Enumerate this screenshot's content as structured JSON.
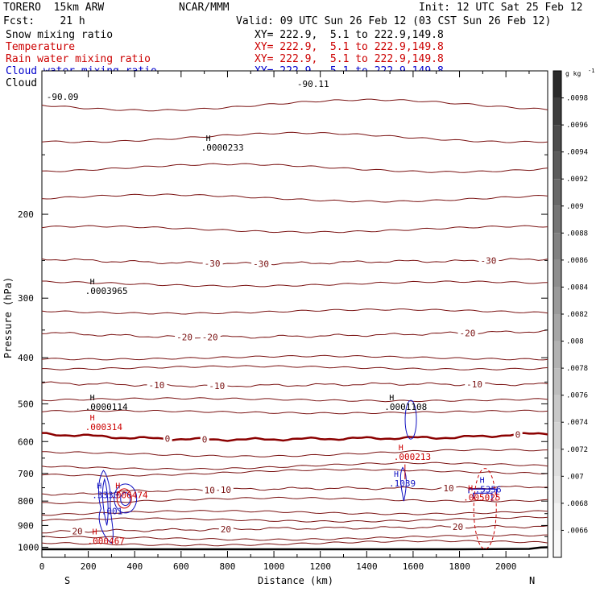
{
  "header": {
    "model": "TORERO  15km ARW",
    "org": "NCAR/MMM",
    "init": "Init: 12 UTC Sat 25 Feb 12",
    "fcst": "Fcst:    21 h",
    "valid": "Valid: 09 UTC Sun 26 Feb 12 (03 CST Sun 26 Feb 12)"
  },
  "fields": [
    {
      "name": "Snow mixing ratio",
      "xy": "XY= 222.9,  5.1 to 222.9,149.8",
      "color": "#000000"
    },
    {
      "name": "Temperature",
      "xy": "XY= 222.9,  5.1 to 222.9,149.8",
      "color": "#cc0000"
    },
    {
      "name": "Rain water mixing ratio",
      "xy": "XY= 222.9,  5.1 to 222.9,149.8",
      "color": "#cc0000"
    },
    {
      "name": "Cloud water mixing ratio",
      "xy": "XY= 222.9,  5.1 to 222.9,149.8",
      "color": "#0000cc"
    },
    {
      "name": "Cloud ice mixing ratio",
      "xy": "XY= 222.9,  5.1 to 222.9,149.8",
      "color": "#000000"
    }
  ],
  "chart_data": {
    "type": "contour cross-section",
    "xlabel": "Distance (km)",
    "ylabel": "Pressure (hPa)",
    "xlim": [
      0,
      2180
    ],
    "ylim": [
      1050,
      100
    ],
    "x_ticks": [
      0,
      200,
      400,
      600,
      800,
      1000,
      1200,
      1400,
      1600,
      1800,
      2000
    ],
    "y_ticks": [
      200,
      300,
      400,
      500,
      600,
      700,
      800,
      900,
      1000
    ],
    "x_end_labels": {
      "left": "S",
      "right": "N"
    },
    "isotherms": [
      {
        "temp": -30,
        "labels": [
          {
            "x": 700,
            "text": "-30"
          },
          {
            "x": 910,
            "text": "-30"
          },
          {
            "x": 1890,
            "text": "-30"
          }
        ],
        "points": [
          [
            0,
            248
          ],
          [
            300,
            251
          ],
          [
            600,
            253
          ],
          [
            900,
            254
          ],
          [
            1200,
            253
          ],
          [
            1500,
            251
          ],
          [
            1800,
            251
          ],
          [
            2180,
            248
          ]
        ]
      },
      {
        "temp": -20,
        "labels": [
          {
            "x": 580,
            "text": "-20"
          },
          {
            "x": 690,
            "text": "-20"
          },
          {
            "x": 1800,
            "text": "-20"
          }
        ],
        "points": [
          [
            0,
            354
          ],
          [
            300,
            359
          ],
          [
            600,
            362
          ],
          [
            900,
            362
          ],
          [
            1200,
            360
          ],
          [
            1500,
            358
          ],
          [
            1800,
            355
          ],
          [
            2180,
            352
          ]
        ]
      },
      {
        "temp": -10,
        "labels": [
          {
            "x": 460,
            "text": "-10"
          },
          {
            "x": 720,
            "text": "-10"
          },
          {
            "x": 1830,
            "text": "-10"
          }
        ],
        "points": [
          [
            0,
            452
          ],
          [
            300,
            455
          ],
          [
            600,
            458
          ],
          [
            900,
            458
          ],
          [
            1200,
            456
          ],
          [
            1500,
            454
          ],
          [
            1800,
            455
          ],
          [
            2180,
            455
          ]
        ]
      },
      {
        "temp": 0,
        "labels": [
          {
            "x": 530,
            "text": "0"
          },
          {
            "x": 690,
            "text": "0"
          },
          {
            "x": 2040,
            "text": "0"
          }
        ],
        "points": [
          [
            0,
            578
          ],
          [
            150,
            582
          ],
          [
            400,
            590
          ],
          [
            700,
            594
          ],
          [
            900,
            594
          ],
          [
            1200,
            592
          ],
          [
            1500,
            590
          ],
          [
            1800,
            588
          ],
          [
            2180,
            576
          ]
        ]
      },
      {
        "temp": 10,
        "labels": [
          {
            "x": 700,
            "text": "10"
          },
          {
            "x": 770,
            "text": "10"
          },
          {
            "x": 1730,
            "text": "10"
          }
        ],
        "points": [
          [
            0,
            772
          ],
          [
            150,
            775
          ],
          [
            400,
            762
          ],
          [
            700,
            758
          ],
          [
            900,
            755
          ],
          [
            1200,
            752
          ],
          [
            1500,
            752
          ],
          [
            1700,
            752
          ],
          [
            1900,
            750
          ],
          [
            2180,
            745
          ]
        ]
      },
      {
        "temp": 20,
        "labels": [
          {
            "x": 130,
            "text": "20"
          },
          {
            "x": 770,
            "text": "20"
          },
          {
            "x": 1770,
            "text": "20"
          }
        ],
        "points": [
          [
            0,
            932
          ],
          [
            150,
            925
          ],
          [
            400,
            922
          ],
          [
            700,
            918
          ],
          [
            900,
            914
          ],
          [
            1200,
            912
          ],
          [
            1500,
            910
          ],
          [
            1800,
            906
          ],
          [
            2180,
            905
          ]
        ]
      }
    ],
    "surface_pressure": [
      [
        0,
        1010
      ],
      [
        1800,
        1010
      ],
      [
        2100,
        1008
      ],
      [
        2150,
        1001
      ],
      [
        2180,
        1000
      ]
    ],
    "extrema_labels": [
      {
        "field": "Snow mixing ratio",
        "x": 200,
        "p": 294,
        "h": "H",
        "value": ".0003965"
      },
      {
        "field": "Cloud ice mixing ratio",
        "x": 700,
        "p": 147,
        "h": "H",
        "value": ".0000233"
      },
      {
        "field": "Cloud ice mixing ratio",
        "x": 200,
        "p": 515,
        "h": "H",
        "value": ".0000114"
      },
      {
        "field": "Snow mixing ratio",
        "x": 1490,
        "p": 515,
        "h": "H",
        "value": ".0001108"
      },
      {
        "field": "Rain water mixing ratio",
        "x": 200,
        "p": 568,
        "h": "H",
        "value": ".000314"
      },
      {
        "field": "Rain water mixing ratio",
        "x": 1530,
        "p": 655,
        "h": "H",
        "value": ".000213"
      },
      {
        "field": "Cloud water mixing ratio",
        "x": 1510,
        "p": 745,
        "h": "H",
        "value": ".1039"
      },
      {
        "field": "Cloud water mixing ratio",
        "x": 230,
        "p": 788,
        "h": "H",
        "value": ".3330"
      },
      {
        "field": "Rain water mixing ratio",
        "x": 310,
        "p": 788,
        "h": "H",
        "value": ".006474"
      },
      {
        "field": "Cloud water mixing ratio",
        "x": 1880,
        "p": 768,
        "h": "H",
        "value": ".5356"
      },
      {
        "field": "Rain water mixing ratio",
        "x": 1830,
        "p": 798,
        "h": "H",
        "value": ".005025"
      },
      {
        "field": "Cloud water mixing ratio",
        "x": 270,
        "p": 853,
        "h": "",
        "value": ".001"
      },
      {
        "field": "Rain water mixing ratio",
        "x": 210,
        "p": 985,
        "h": "H",
        "value": ".000467"
      }
    ],
    "top_labels": [
      {
        "x": 20,
        "p": 115,
        "text": "-90.09",
        "color": "#000000"
      },
      {
        "x": 1100,
        "p": 108,
        "text": "-90.11",
        "color": "#000000"
      }
    ],
    "colorbar": {
      "unit": "g kg",
      "unit_exp": "-1",
      "ticks": [
        ".0098",
        ".0096",
        ".0094",
        ".0092",
        ".009",
        ".0088",
        ".0086",
        ".0084",
        ".0082",
        ".008",
        ".0078",
        ".0076",
        ".0074",
        ".0072",
        ".007",
        ".0068",
        ".0066"
      ],
      "colors": [
        "#2b2b2b",
        "#3e3e3e",
        "#4d4d4d",
        "#5b5b5b",
        "#686868",
        "#757575",
        "#828282",
        "#8e8e8e",
        "#9a9a9a",
        "#a6a6a6",
        "#b2b2b2",
        "#bdbdbd",
        "#c8c8c8",
        "#d3d3d3",
        "#dddddd",
        "#e7e7e7",
        "#f1f1f1",
        "#f8f8f8"
      ]
    }
  }
}
